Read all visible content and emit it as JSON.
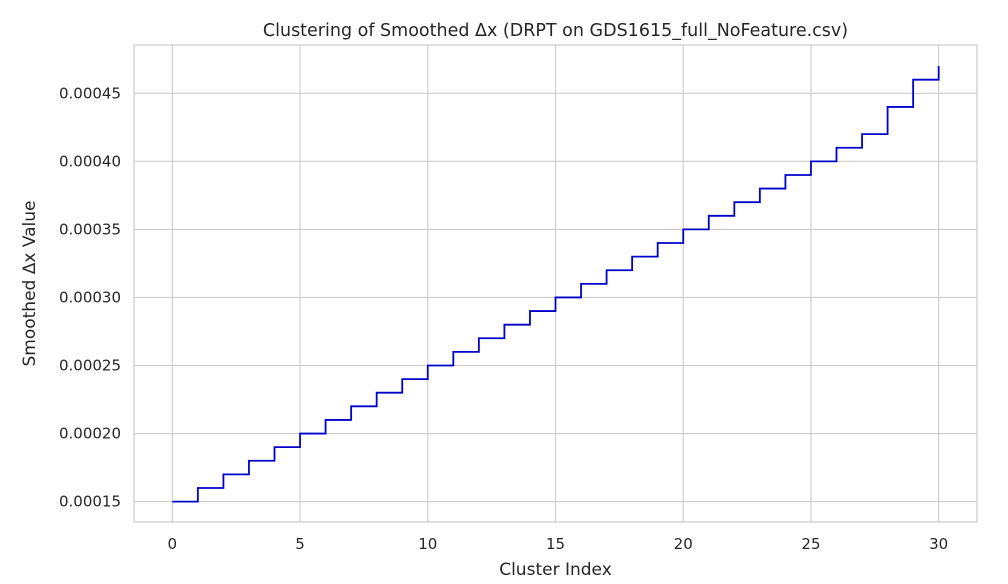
{
  "chart_data": {
    "type": "line",
    "drawstyle": "steps-post",
    "title": "Clustering of Smoothed Δx (DRPT on GDS1615_full_NoFeature.csv)",
    "xlabel": "Cluster Index",
    "ylabel": "Smoothed Δx Value",
    "xlim": [
      -1.5,
      31.5
    ],
    "ylim": [
      0.000135,
      0.0004855
    ],
    "xticks": [
      0,
      5,
      10,
      15,
      20,
      25,
      30
    ],
    "xtick_labels": [
      "0",
      "5",
      "10",
      "15",
      "20",
      "25",
      "30"
    ],
    "yticks": [
      0.00015,
      0.0002,
      0.00025,
      0.0003,
      0.00035,
      0.0004,
      0.00045
    ],
    "ytick_labels": [
      "0.00015",
      "0.00020",
      "0.00025",
      "0.00030",
      "0.00035",
      "0.00040",
      "0.00045"
    ],
    "grid": true,
    "line_color": "#0000cc",
    "series": [
      {
        "x": [
          0,
          1,
          2,
          3,
          4,
          5,
          6,
          7,
          8,
          9,
          10,
          11,
          12,
          13,
          14,
          15,
          16,
          17,
          18,
          19,
          20,
          21,
          22,
          23,
          24,
          25,
          26,
          27,
          28,
          29,
          30
        ],
        "values": [
          0.00015,
          0.00016,
          0.00017,
          0.00018,
          0.00019,
          0.0002,
          0.00021,
          0.00022,
          0.00023,
          0.00024,
          0.00025,
          0.00026,
          0.00027,
          0.00028,
          0.00029,
          0.0003,
          0.00031,
          0.00032,
          0.00033,
          0.00034,
          0.00035,
          0.00036,
          0.00037,
          0.00038,
          0.00039,
          0.0004,
          0.00041,
          0.00042,
          0.00044,
          0.00046,
          0.00047
        ]
      }
    ]
  }
}
